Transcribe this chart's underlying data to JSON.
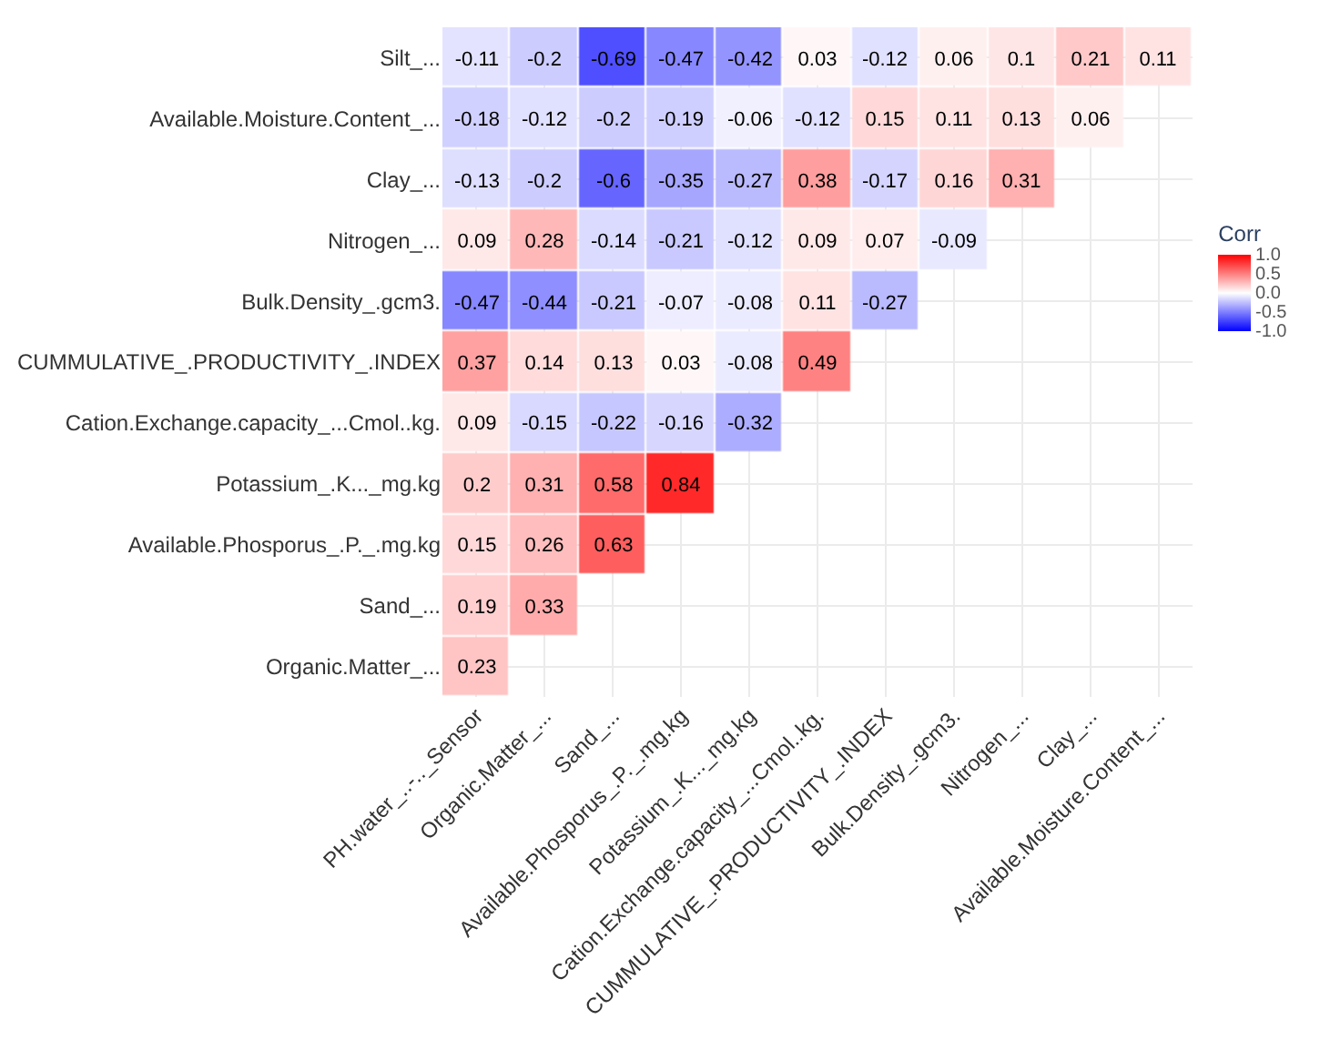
{
  "chart_data": {
    "type": "heatmap",
    "clabel": "Corr",
    "categories": [
      "PH.water_..-.._Sensor",
      "Organic.Matter_...",
      "Sand_...",
      "Available.Phosporus_.P._.mg.kg",
      "Potassium_.K..._mg.kg",
      "Cation.Exchange.capacity_...Cmol..kg.",
      "CUMMULATIVE_.PRODUCTIVITY_.INDEX",
      "Bulk.Density_.gcm3.",
      "Nitrogen_...",
      "Clay_...",
      "Available.Moisture.Content_..."
    ],
    "y_categories": [
      "Silt_...",
      "Available.Moisture.Content_...",
      "Clay_...",
      "Nitrogen_...",
      "Bulk.Density_.gcm3.",
      "CUMMULATIVE_.PRODUCTIVITY_.INDEX",
      "Cation.Exchange.capacity_...Cmol..kg.",
      "Potassium_.K..._mg.kg",
      "Available.Phosporus_.P._.mg.kg",
      "Sand_...",
      "Organic.Matter_..."
    ],
    "cells": [
      [
        -0.11,
        -0.2,
        -0.69,
        -0.47,
        -0.42,
        0.03,
        -0.12,
        0.06,
        0.1,
        0.21,
        0.11
      ],
      [
        -0.18,
        -0.12,
        -0.2,
        -0.19,
        -0.06,
        -0.12,
        0.15,
        0.11,
        0.13,
        0.06,
        null
      ],
      [
        -0.13,
        -0.2,
        -0.6,
        -0.35,
        -0.27,
        0.38,
        -0.17,
        0.16,
        0.31,
        null,
        null
      ],
      [
        0.09,
        0.28,
        -0.14,
        -0.21,
        -0.12,
        0.09,
        0.07,
        -0.09,
        null,
        null,
        null
      ],
      [
        -0.47,
        -0.44,
        -0.21,
        -0.07,
        -0.08,
        0.11,
        -0.27,
        null,
        null,
        null,
        null
      ],
      [
        0.37,
        0.14,
        0.13,
        0.03,
        -0.08,
        0.49,
        null,
        null,
        null,
        null,
        null
      ],
      [
        0.09,
        -0.15,
        -0.22,
        -0.16,
        -0.32,
        null,
        null,
        null,
        null,
        null,
        null
      ],
      [
        0.2,
        0.31,
        0.58,
        0.84,
        null,
        null,
        null,
        null,
        null,
        null,
        null
      ],
      [
        0.15,
        0.26,
        0.63,
        null,
        null,
        null,
        null,
        null,
        null,
        null,
        null
      ],
      [
        0.19,
        0.33,
        null,
        null,
        null,
        null,
        null,
        null,
        null,
        null,
        null
      ],
      [
        0.23,
        null,
        null,
        null,
        null,
        null,
        null,
        null,
        null,
        null,
        null
      ]
    ],
    "clim": [
      -1,
      1
    ],
    "cticks": [
      {
        "value": -1,
        "label": "-1.0"
      },
      {
        "value": -0.5,
        "label": "-0.5"
      },
      {
        "value": 0,
        "label": "0.0"
      },
      {
        "value": 0.5,
        "label": "0.5"
      },
      {
        "value": 1,
        "label": "1.0"
      }
    ],
    "data_labels": true,
    "grid": true
  }
}
